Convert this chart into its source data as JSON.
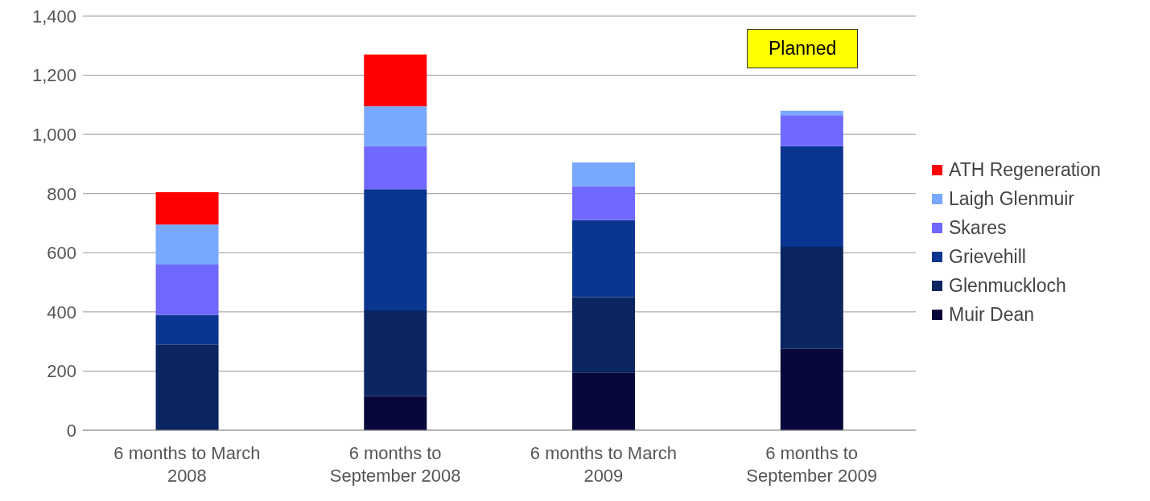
{
  "chart_data": {
    "type": "bar",
    "stacked": true,
    "categories": [
      "6 months to March 2008",
      "6 months to September 2008",
      "6 months to March 2009",
      "6 months to September 2009"
    ],
    "series": [
      {
        "name": "Muir Dean",
        "color": "#07073a",
        "values": [
          0,
          115,
          195,
          275
        ]
      },
      {
        "name": "Glenmuckloch",
        "color": "#0a2560",
        "values": [
          290,
          290,
          255,
          345
        ]
      },
      {
        "name": "Grievehill",
        "color": "#0a3590",
        "values": [
          100,
          410,
          260,
          340
        ]
      },
      {
        "name": "Skares",
        "color": "#7068ff",
        "values": [
          170,
          145,
          115,
          105
        ]
      },
      {
        "name": "Laigh Glenmuir",
        "color": "#78a8ff",
        "values": [
          135,
          135,
          80,
          15
        ]
      },
      {
        "name": "ATH Regeneration",
        "color": "#ff0000",
        "values": [
          110,
          175,
          0,
          0
        ]
      }
    ],
    "ylim": [
      0,
      1400
    ],
    "yticks": [
      {
        "value": 0,
        "label": "0"
      },
      {
        "value": 200,
        "label": "200"
      },
      {
        "value": 400,
        "label": "400"
      },
      {
        "value": 600,
        "label": "600"
      },
      {
        "value": 800,
        "label": "800"
      },
      {
        "value": 1000,
        "label": "1,000"
      },
      {
        "value": 1200,
        "label": "1,200"
      },
      {
        "value": 1400,
        "label": "1,400"
      }
    ],
    "grid": "y",
    "legend": "right",
    "annotations": [
      "Planned"
    ]
  }
}
